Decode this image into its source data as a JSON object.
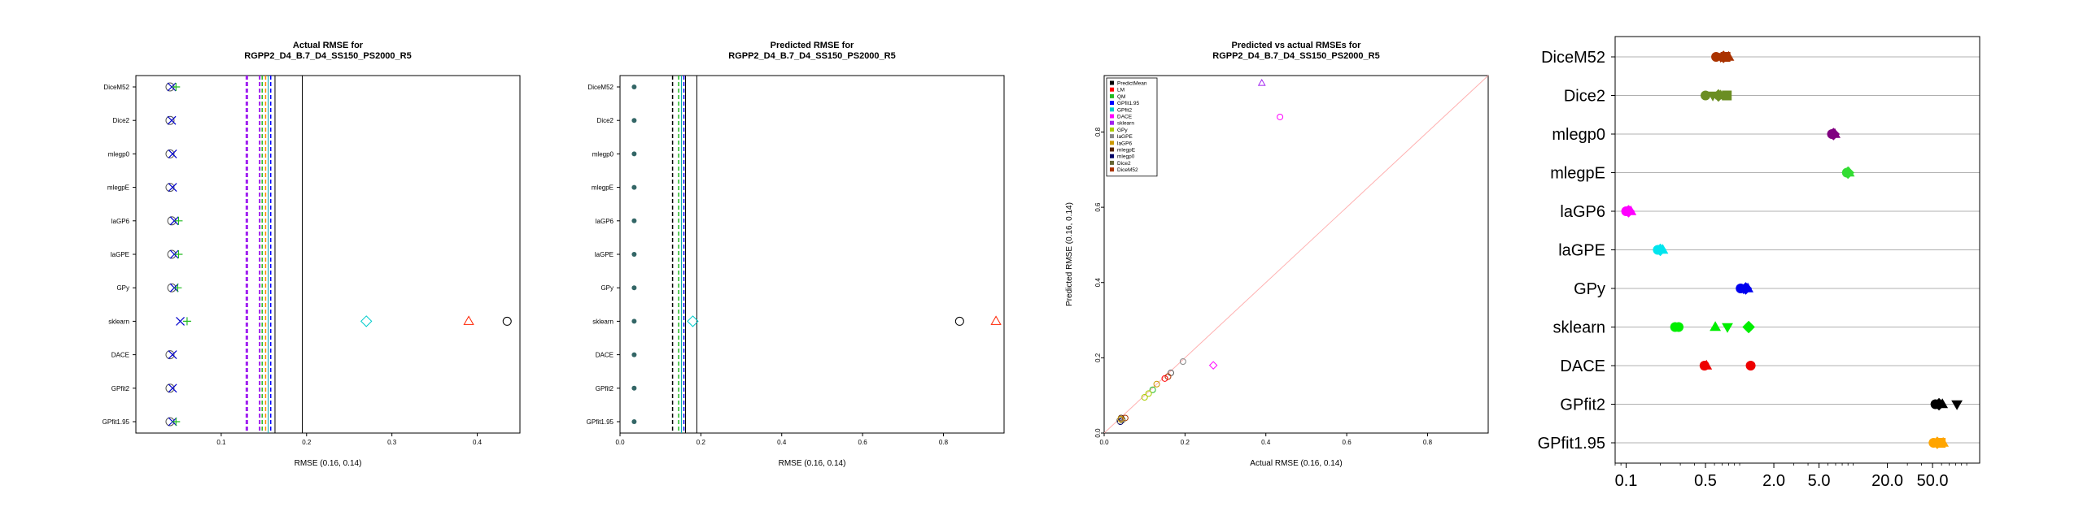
{
  "chart_data": [
    {
      "type": "scatter",
      "title": [
        "Actual RMSE for",
        "RGPP2_D4_B.7_D4_SS150_PS2000_R5"
      ],
      "xlabel": "RMSE (0.16, 0.14)",
      "xlim": [
        0.0,
        0.45
      ],
      "xticks": [
        0.1,
        0.2,
        0.3,
        0.4
      ],
      "categories": [
        "DiceM52",
        "Dice2",
        "mlegp0",
        "mlegpE",
        "laGP6",
        "laGPE",
        "GPy",
        "sklearn",
        "DACE",
        "GPfit2",
        "GPfit1.95"
      ],
      "vlines": [
        {
          "x": 0.13,
          "color": "#a020f0",
          "dash": "dash",
          "width": 3
        },
        {
          "x": 0.145,
          "color": "#a020f0",
          "dash": "dash",
          "width": 2
        },
        {
          "x": 0.148,
          "color": "#22bb22",
          "dash": "dash",
          "width": 1.5
        },
        {
          "x": 0.152,
          "color": "#ff8c00",
          "dash": "dash",
          "width": 1.5
        },
        {
          "x": 0.155,
          "color": "#00aaaa",
          "dash": "solid",
          "width": 1
        },
        {
          "x": 0.158,
          "color": "#0000ff",
          "dash": "dash",
          "width": 1.5
        },
        {
          "x": 0.163,
          "color": "#000000",
          "dash": "solid",
          "width": 1
        },
        {
          "x": 0.195,
          "color": "#000000",
          "dash": "solid",
          "width": 1
        }
      ],
      "points": [
        {
          "category": "DiceM52",
          "x": 0.04,
          "shape": "circle",
          "color": "#555555"
        },
        {
          "category": "DiceM52",
          "x": 0.042,
          "shape": "x",
          "color": "#0000cc"
        },
        {
          "category": "DiceM52",
          "x": 0.047,
          "shape": "plus",
          "color": "#22bb22"
        },
        {
          "category": "Dice2",
          "x": 0.04,
          "shape": "circle",
          "color": "#555555"
        },
        {
          "category": "Dice2",
          "x": 0.042,
          "shape": "x",
          "color": "#0000cc"
        },
        {
          "category": "mlegp0",
          "x": 0.04,
          "shape": "circle",
          "color": "#555555"
        },
        {
          "category": "mlegp0",
          "x": 0.043,
          "shape": "x",
          "color": "#0000cc"
        },
        {
          "category": "mlegpE",
          "x": 0.04,
          "shape": "circle",
          "color": "#555555"
        },
        {
          "category": "mlegpE",
          "x": 0.043,
          "shape": "x",
          "color": "#0000cc"
        },
        {
          "category": "laGP6",
          "x": 0.042,
          "shape": "circle",
          "color": "#555555"
        },
        {
          "category": "laGP6",
          "x": 0.045,
          "shape": "x",
          "color": "#0000cc"
        },
        {
          "category": "laGP6",
          "x": 0.05,
          "shape": "plus",
          "color": "#22bb22"
        },
        {
          "category": "laGPE",
          "x": 0.042,
          "shape": "circle",
          "color": "#555555"
        },
        {
          "category": "laGPE",
          "x": 0.045,
          "shape": "x",
          "color": "#0000cc"
        },
        {
          "category": "laGPE",
          "x": 0.05,
          "shape": "plus",
          "color": "#22bb22"
        },
        {
          "category": "GPy",
          "x": 0.042,
          "shape": "circle",
          "color": "#555555"
        },
        {
          "category": "GPy",
          "x": 0.045,
          "shape": "x",
          "color": "#0000cc"
        },
        {
          "category": "GPy",
          "x": 0.049,
          "shape": "plus",
          "color": "#22bb22"
        },
        {
          "category": "sklearn",
          "x": 0.052,
          "shape": "x",
          "color": "#0000cc"
        },
        {
          "category": "sklearn",
          "x": 0.06,
          "shape": "plus",
          "color": "#22bb22"
        },
        {
          "category": "sklearn",
          "x": 0.27,
          "shape": "diamond",
          "color": "#00cccc"
        },
        {
          "category": "sklearn",
          "x": 0.39,
          "shape": "triangle",
          "color": "#ff2200"
        },
        {
          "category": "sklearn",
          "x": 0.435,
          "shape": "circle",
          "color": "#000000"
        },
        {
          "category": "DACE",
          "x": 0.04,
          "shape": "circle",
          "color": "#555555"
        },
        {
          "category": "DACE",
          "x": 0.043,
          "shape": "x",
          "color": "#0000cc"
        },
        {
          "category": "GPfit2",
          "x": 0.04,
          "shape": "circle",
          "color": "#555555"
        },
        {
          "category": "GPfit2",
          "x": 0.043,
          "shape": "x",
          "color": "#0000cc"
        },
        {
          "category": "GPfit1.95",
          "x": 0.04,
          "shape": "circle",
          "color": "#555555"
        },
        {
          "category": "GPfit1.95",
          "x": 0.043,
          "shape": "x",
          "color": "#0000cc"
        },
        {
          "category": "GPfit1.95",
          "x": 0.047,
          "shape": "plus",
          "color": "#22bb22"
        }
      ]
    },
    {
      "type": "scatter",
      "title": [
        "Predicted RMSE for",
        "RGPP2_D4_B.7_D4_SS150_PS2000_R5"
      ],
      "xlabel": "RMSE (0.16, 0.14)",
      "xlim": [
        0.0,
        0.95
      ],
      "xticks": [
        0.0,
        0.2,
        0.4,
        0.6,
        0.8
      ],
      "categories": [
        "DiceM52",
        "Dice2",
        "mlegp0",
        "mlegpE",
        "laGP6",
        "laGPE",
        "GPy",
        "sklearn",
        "DACE",
        "GPfit2",
        "GPfit1.95"
      ],
      "vlines": [
        {
          "x": 0.13,
          "color": "#000000",
          "dash": "dash",
          "width": 1.5
        },
        {
          "x": 0.145,
          "color": "#22bb22",
          "dash": "dash",
          "width": 1.5
        },
        {
          "x": 0.152,
          "color": "#00aaaa",
          "dash": "solid",
          "width": 1
        },
        {
          "x": 0.158,
          "color": "#0000ff",
          "dash": "dash",
          "width": 1.5
        },
        {
          "x": 0.162,
          "color": "#000000",
          "dash": "solid",
          "width": 1
        },
        {
          "x": 0.19,
          "color": "#000000",
          "dash": "solid",
          "width": 1
        }
      ],
      "points": [
        {
          "category": "DiceM52",
          "x": 0.035,
          "shape": "dot",
          "color": "#336666"
        },
        {
          "category": "Dice2",
          "x": 0.035,
          "shape": "dot",
          "color": "#336666"
        },
        {
          "category": "mlegp0",
          "x": 0.035,
          "shape": "dot",
          "color": "#336666"
        },
        {
          "category": "mlegpE",
          "x": 0.035,
          "shape": "dot",
          "color": "#336666"
        },
        {
          "category": "laGP6",
          "x": 0.035,
          "shape": "dot",
          "color": "#336666"
        },
        {
          "category": "laGPE",
          "x": 0.035,
          "shape": "dot",
          "color": "#336666"
        },
        {
          "category": "GPy",
          "x": 0.035,
          "shape": "dot",
          "color": "#336666"
        },
        {
          "category": "sklearn",
          "x": 0.035,
          "shape": "dot",
          "color": "#336666"
        },
        {
          "category": "sklearn",
          "x": 0.18,
          "shape": "diamond",
          "color": "#00cccc"
        },
        {
          "category": "sklearn",
          "x": 0.84,
          "shape": "circle",
          "color": "#000000"
        },
        {
          "category": "sklearn",
          "x": 0.93,
          "shape": "triangle",
          "color": "#ff2200"
        },
        {
          "category": "DACE",
          "x": 0.035,
          "shape": "dot",
          "color": "#336666"
        },
        {
          "category": "GPfit2",
          "x": 0.035,
          "shape": "dot",
          "color": "#336666"
        },
        {
          "category": "GPfit1.95",
          "x": 0.035,
          "shape": "dot",
          "color": "#336666"
        }
      ]
    },
    {
      "type": "scatter",
      "title": [
        "Predicted vs actual RMSEs for",
        "RGPP2_D4_B.7_D4_SS150_PS2000_R5"
      ],
      "xlabel": "Actual RMSE (0.16, 0.14)",
      "ylabel": "Predicted RMSE (0.16, 0.14)",
      "xlim": [
        0.0,
        0.95
      ],
      "ylim": [
        0.0,
        0.95
      ],
      "xticks": [
        0.0,
        0.2,
        0.4,
        0.6,
        0.8
      ],
      "yticks": [
        0.0,
        0.2,
        0.4,
        0.6,
        0.8
      ],
      "legend_position": "top-left",
      "legend": [
        {
          "name": "PredictMean",
          "color": "#000000"
        },
        {
          "name": "LM",
          "color": "#ff0000"
        },
        {
          "name": "QM",
          "color": "#22bb22"
        },
        {
          "name": "GPfit1.95",
          "color": "#0000ff"
        },
        {
          "name": "GPfit2",
          "color": "#00cccc"
        },
        {
          "name": "DACE",
          "color": "#ff00ff"
        },
        {
          "name": "sklearn",
          "color": "#a020f0"
        },
        {
          "name": "GPy",
          "color": "#aacc00"
        },
        {
          "name": "laGPE",
          "color": "#888888"
        },
        {
          "name": "laGP6",
          "color": "#cc9900"
        },
        {
          "name": "mlegpE",
          "color": "#552200"
        },
        {
          "name": "mlegp0",
          "color": "#000066"
        },
        {
          "name": "Dice2",
          "color": "#666633"
        },
        {
          "name": "DiceM52",
          "color": "#aa3300"
        }
      ],
      "diagonal": true,
      "points": [
        {
          "x": 0.39,
          "y": 0.93,
          "shape": "triangle",
          "color": "#a020f0"
        },
        {
          "x": 0.435,
          "y": 0.84,
          "shape": "circle",
          "color": "#ff00ff"
        },
        {
          "x": 0.27,
          "y": 0.18,
          "shape": "diamond",
          "color": "#ff00ff"
        },
        {
          "x": 0.195,
          "y": 0.19,
          "shape": "circle",
          "color": "#888888"
        },
        {
          "x": 0.165,
          "y": 0.16,
          "shape": "circle",
          "color": "#555555"
        },
        {
          "x": 0.158,
          "y": 0.15,
          "shape": "circle",
          "color": "#aa3300"
        },
        {
          "x": 0.15,
          "y": 0.145,
          "shape": "circle",
          "color": "#ff0000"
        },
        {
          "x": 0.13,
          "y": 0.13,
          "shape": "circle",
          "color": "#cc9900"
        },
        {
          "x": 0.12,
          "y": 0.115,
          "shape": "circle",
          "color": "#22bb22"
        },
        {
          "x": 0.11,
          "y": 0.105,
          "shape": "circle",
          "color": "#aacc00"
        },
        {
          "x": 0.1,
          "y": 0.095,
          "shape": "circle",
          "color": "#aacc00"
        },
        {
          "x": 0.052,
          "y": 0.04,
          "shape": "circle",
          "color": "#aa3300"
        },
        {
          "x": 0.045,
          "y": 0.035,
          "shape": "circle",
          "color": "#666633"
        },
        {
          "x": 0.042,
          "y": 0.04,
          "shape": "circle",
          "color": "#552200"
        },
        {
          "x": 0.04,
          "y": 0.03,
          "shape": "circle",
          "color": "#000066"
        },
        {
          "x": 0.038,
          "y": 0.033,
          "shape": "circle",
          "color": "#888888"
        },
        {
          "x": 0.041,
          "y": 0.037,
          "shape": "circle",
          "color": "#cc9900"
        }
      ]
    },
    {
      "type": "scatter",
      "xscale": "log",
      "xlim": [
        0.08,
        130
      ],
      "xticks": [
        0.1,
        0.5,
        2.0,
        5.0,
        20.0,
        50.0
      ],
      "xtick_labels": [
        "0.1",
        "0.5",
        "2.0",
        "5.0",
        "20.0",
        "50.0"
      ],
      "categories": [
        "DiceM52",
        "Dice2",
        "mlegp0",
        "mlegpE",
        "laGP6",
        "laGPE",
        "GPy",
        "sklearn",
        "DACE",
        "GPfit2",
        "GPfit1.95"
      ],
      "grid": "horizontal",
      "points": [
        {
          "category": "DiceM52",
          "x": 0.62,
          "shape": "circle",
          "color": "#aa3300"
        },
        {
          "category": "DiceM52",
          "x": 0.68,
          "shape": "triangle-down",
          "color": "#aa3300"
        },
        {
          "category": "DiceM52",
          "x": 0.72,
          "shape": "diamond",
          "color": "#aa3300"
        },
        {
          "category": "DiceM52",
          "x": 0.75,
          "shape": "square",
          "color": "#aa3300"
        },
        {
          "category": "DiceM52",
          "x": 0.8,
          "shape": "triangle",
          "color": "#aa3300"
        },
        {
          "category": "Dice2",
          "x": 0.5,
          "shape": "circle",
          "color": "#6b8e23"
        },
        {
          "category": "Dice2",
          "x": 0.58,
          "shape": "triangle-down",
          "color": "#6b8e23"
        },
        {
          "category": "Dice2",
          "x": 0.65,
          "shape": "diamond",
          "color": "#6b8e23"
        },
        {
          "category": "Dice2",
          "x": 0.68,
          "shape": "triangle",
          "color": "#6b8e23"
        },
        {
          "category": "Dice2",
          "x": 0.77,
          "shape": "square",
          "color": "#6b8e23"
        },
        {
          "category": "mlegp0",
          "x": 6.5,
          "shape": "circle",
          "color": "#800080"
        },
        {
          "category": "mlegp0",
          "x": 6.7,
          "shape": "diamond",
          "color": "#800080"
        },
        {
          "category": "mlegp0",
          "x": 6.9,
          "shape": "triangle",
          "color": "#800080"
        },
        {
          "category": "mlegpE",
          "x": 8.8,
          "shape": "circle",
          "color": "#33dd33"
        },
        {
          "category": "mlegpE",
          "x": 9.0,
          "shape": "diamond",
          "color": "#33dd33"
        },
        {
          "category": "mlegpE",
          "x": 9.2,
          "shape": "triangle",
          "color": "#33dd33"
        },
        {
          "category": "laGP6",
          "x": 0.1,
          "shape": "circle",
          "color": "#ff00ff"
        },
        {
          "category": "laGP6",
          "x": 0.105,
          "shape": "diamond",
          "color": "#ff00ff"
        },
        {
          "category": "laGP6",
          "x": 0.11,
          "shape": "triangle",
          "color": "#ff00ff"
        },
        {
          "category": "laGPE",
          "x": 0.19,
          "shape": "circle",
          "color": "#00e5ee"
        },
        {
          "category": "laGPE",
          "x": 0.2,
          "shape": "diamond",
          "color": "#00e5ee"
        },
        {
          "category": "laGPE",
          "x": 0.21,
          "shape": "triangle",
          "color": "#00e5ee"
        },
        {
          "category": "GPy",
          "x": 1.02,
          "shape": "circle",
          "color": "#0000ee"
        },
        {
          "category": "GPy",
          "x": 1.08,
          "shape": "triangle-down",
          "color": "#0000ee"
        },
        {
          "category": "GPy",
          "x": 1.13,
          "shape": "diamond",
          "color": "#0000ee"
        },
        {
          "category": "GPy",
          "x": 1.18,
          "shape": "triangle",
          "color": "#0000ee"
        },
        {
          "category": "sklearn",
          "x": 0.27,
          "shape": "circle",
          "color": "#00ee00"
        },
        {
          "category": "sklearn",
          "x": 0.29,
          "shape": "circle",
          "color": "#00ee00"
        },
        {
          "category": "sklearn",
          "x": 0.61,
          "shape": "triangle",
          "color": "#00ee00"
        },
        {
          "category": "sklearn",
          "x": 0.78,
          "shape": "triangle-down",
          "color": "#00ee00"
        },
        {
          "category": "sklearn",
          "x": 1.2,
          "shape": "diamond",
          "color": "#00ee00"
        },
        {
          "category": "DACE",
          "x": 0.49,
          "shape": "circle",
          "color": "#ee0000"
        },
        {
          "category": "DACE",
          "x": 0.51,
          "shape": "triangle",
          "color": "#ee0000"
        },
        {
          "category": "DACE",
          "x": 1.25,
          "shape": "circle",
          "color": "#ee0000"
        },
        {
          "category": "GPfit2",
          "x": 53,
          "shape": "circle",
          "color": "#000000"
        },
        {
          "category": "GPfit2",
          "x": 57,
          "shape": "diamond",
          "color": "#000000"
        },
        {
          "category": "GPfit2",
          "x": 61,
          "shape": "triangle",
          "color": "#000000"
        },
        {
          "category": "GPfit2",
          "x": 82,
          "shape": "triangle-down",
          "color": "#000000"
        },
        {
          "category": "GPfit1.95",
          "x": 51,
          "shape": "circle",
          "color": "#ffa500"
        },
        {
          "category": "GPfit1.95",
          "x": 55,
          "shape": "diamond",
          "color": "#ffa500"
        },
        {
          "category": "GPfit1.95",
          "x": 59,
          "shape": "square",
          "color": "#ffa500"
        },
        {
          "category": "GPfit1.95",
          "x": 62,
          "shape": "triangle",
          "color": "#ffa500"
        }
      ]
    }
  ]
}
